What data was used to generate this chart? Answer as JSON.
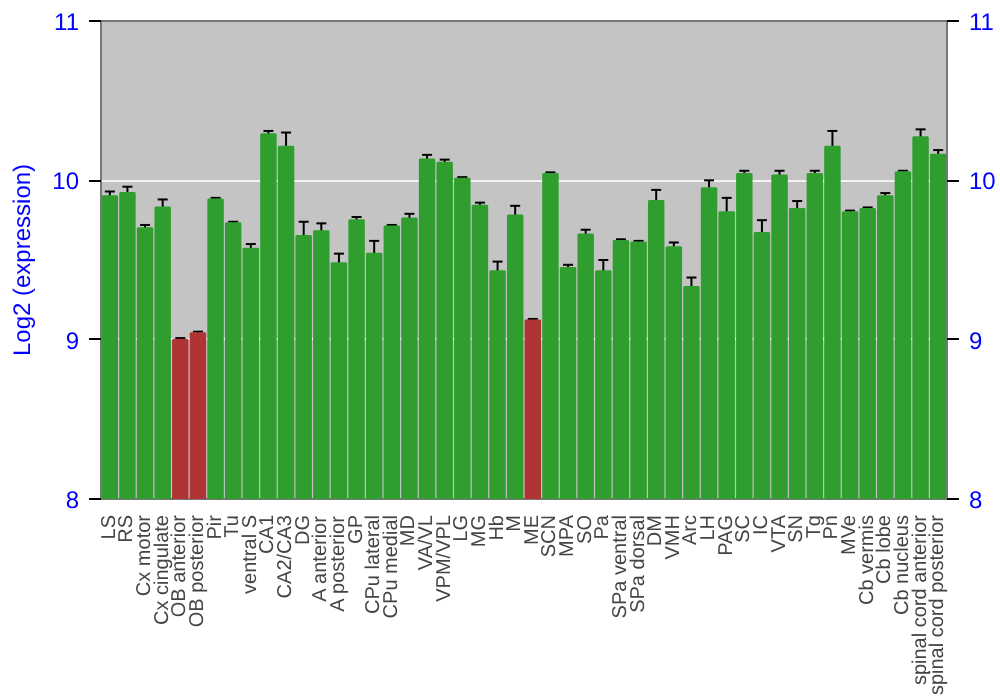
{
  "chart_data": {
    "type": "bar",
    "ylabel": "Log2 (expression)",
    "categories": [
      "LS",
      "RS",
      "Cx motor",
      "Cx cingulate",
      "OB anterior",
      "OB posterior",
      "Pir",
      "Tu",
      "ventral S",
      "CA1",
      "CA2/CA3",
      "DG",
      "A anterior",
      "A posterior",
      "GP",
      "CPu lateral",
      "CPu medial",
      "MD",
      "VA/VL",
      "VPM/VPL",
      "LG",
      "MG",
      "Hb",
      "M",
      "ME",
      "SCN",
      "MPA",
      "SO",
      "Pa",
      "SPa ventral",
      "SPa dorsal",
      "DM",
      "VMH",
      "Arc",
      "LH",
      "PAG",
      "SC",
      "IC",
      "VTA",
      "SN",
      "Tg",
      "Pn",
      "MVe",
      "Cb vermis",
      "Cb lobe",
      "Cb nucleus",
      "spinal cord anterior",
      "spinal cord posterior"
    ],
    "values": [
      9.9,
      9.92,
      9.7,
      9.83,
      9.0,
      9.04,
      9.88,
      9.73,
      9.57,
      10.29,
      10.21,
      9.65,
      9.68,
      9.48,
      9.75,
      9.54,
      9.71,
      9.76,
      10.13,
      10.11,
      10.01,
      9.84,
      9.43,
      9.78,
      9.12,
      10.04,
      9.45,
      9.66,
      9.43,
      9.62,
      9.61,
      9.87,
      9.58,
      9.33,
      9.95,
      9.8,
      10.04,
      9.67,
      10.03,
      9.82,
      10.04,
      10.21,
      9.8,
      9.82,
      9.9,
      10.05,
      10.27,
      10.16
    ],
    "errors": [
      0.03,
      0.04,
      0.02,
      0.05,
      0.01,
      0.01,
      0.01,
      0.01,
      0.03,
      0.02,
      0.09,
      0.09,
      0.05,
      0.06,
      0.02,
      0.08,
      0.01,
      0.03,
      0.03,
      0.02,
      0.01,
      0.02,
      0.06,
      0.06,
      0.01,
      0.01,
      0.02,
      0.03,
      0.07,
      0.01,
      0.01,
      0.07,
      0.03,
      0.06,
      0.05,
      0.09,
      0.02,
      0.08,
      0.03,
      0.05,
      0.02,
      0.1,
      0.01,
      0.01,
      0.02,
      0.01,
      0.05,
      0.03
    ],
    "colors": [
      "#2f9e2f",
      "#2f9e2f",
      "#2f9e2f",
      "#2f9e2f",
      "#b03434",
      "#b03434",
      "#2f9e2f",
      "#2f9e2f",
      "#2f9e2f",
      "#2f9e2f",
      "#2f9e2f",
      "#2f9e2f",
      "#2f9e2f",
      "#2f9e2f",
      "#2f9e2f",
      "#2f9e2f",
      "#2f9e2f",
      "#2f9e2f",
      "#2f9e2f",
      "#2f9e2f",
      "#2f9e2f",
      "#2f9e2f",
      "#2f9e2f",
      "#2f9e2f",
      "#b03434",
      "#2f9e2f",
      "#2f9e2f",
      "#2f9e2f",
      "#2f9e2f",
      "#2f9e2f",
      "#2f9e2f",
      "#2f9e2f",
      "#2f9e2f",
      "#2f9e2f",
      "#2f9e2f",
      "#2f9e2f",
      "#2f9e2f",
      "#2f9e2f",
      "#2f9e2f",
      "#2f9e2f",
      "#2f9e2f",
      "#2f9e2f",
      "#2f9e2f",
      "#2f9e2f",
      "#2f9e2f",
      "#2f9e2f",
      "#2f9e2f",
      "#2f9e2f"
    ],
    "ylim": [
      8,
      11
    ],
    "yticks": [
      8,
      9,
      10,
      11
    ],
    "y2lim": [
      8,
      11
    ],
    "y2ticks": [
      8,
      9,
      10,
      11
    ],
    "grid": "y"
  }
}
